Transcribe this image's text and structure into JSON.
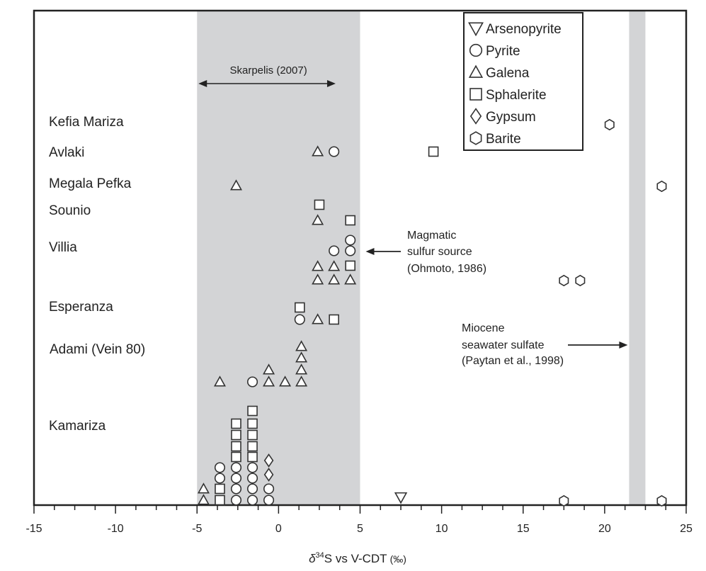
{
  "chart_data": {
    "type": "scatter",
    "xlabel": "δ34S vs V-CDT (‰)",
    "xlabel_parts": {
      "delta": "δ",
      "sup": "34",
      "rest": "S vs V-CDT",
      "unit": "(‰)"
    },
    "xlim": [
      -15,
      25
    ],
    "xticks": [
      -15,
      -10,
      -5,
      0,
      5,
      10,
      15,
      20,
      25
    ],
    "grid": false,
    "legend_position": "top-right",
    "colors": {
      "axis": "#222222",
      "band": "#d3d4d6",
      "marker": "#333333"
    },
    "shaded_bands": [
      {
        "name": "skarpelis-range",
        "x": [
          -5,
          5
        ]
      },
      {
        "name": "seawater-sulfate",
        "x": [
          21.5,
          22.5
        ]
      }
    ],
    "localities": [
      "Kefia Mariza",
      "Avlaki",
      "Megala Pefka",
      "Sounio",
      "Villia",
      "Esperanza",
      "Adami (Vein 80)",
      "Kamariza"
    ],
    "legend": [
      {
        "mineral": "arsenopyrite",
        "label": "Arsenopyrite",
        "icon": "triangle-down-icon"
      },
      {
        "mineral": "pyrite",
        "label": "Pyrite",
        "icon": "circle-icon"
      },
      {
        "mineral": "galena",
        "label": "Galena",
        "icon": "triangle-up-icon"
      },
      {
        "mineral": "sphalerite",
        "label": "Sphalerite",
        "icon": "square-icon"
      },
      {
        "mineral": "gypsum",
        "label": "Gypsum",
        "icon": "diamond-icon"
      },
      {
        "mineral": "barite",
        "label": "Barite",
        "icon": "hexagon-icon"
      }
    ],
    "annotations": {
      "skarpelis": "Skarpelis (2007)",
      "magmatic": [
        "Magmatic",
        "sulfur source",
        "(Ohmoto, 1986)"
      ],
      "miocene": [
        "Miocene",
        "seawater sulfate",
        "(Paytan et al., 1998)"
      ]
    },
    "series": [
      {
        "locality": "Kefia Mariza",
        "mineral": "barite",
        "x": [
          20.3
        ]
      },
      {
        "locality": "Avlaki",
        "mineral": "galena",
        "x": [
          2.4
        ]
      },
      {
        "locality": "Avlaki",
        "mineral": "pyrite",
        "x": [
          3.4
        ]
      },
      {
        "locality": "Avlaki",
        "mineral": "sphalerite",
        "x": [
          9.5
        ]
      },
      {
        "locality": "Megala Pefka",
        "mineral": "galena",
        "x": [
          -2.6
        ]
      },
      {
        "locality": "Megala Pefka",
        "mineral": "barite",
        "x": [
          23.5
        ]
      },
      {
        "locality": "Sounio",
        "mineral": "sphalerite",
        "x": [
          2.5,
          4.4
        ]
      },
      {
        "locality": "Sounio",
        "mineral": "galena",
        "x": [
          2.4
        ]
      },
      {
        "locality": "Villia",
        "mineral": "pyrite",
        "x": [
          4.4,
          3.4,
          4.4
        ]
      },
      {
        "locality": "Villia",
        "mineral": "sphalerite",
        "x": [
          4.4
        ]
      },
      {
        "locality": "Villia",
        "mineral": "galena",
        "x": [
          2.4,
          3.4,
          2.4,
          3.4,
          4.4
        ]
      },
      {
        "locality": "Villia",
        "mineral": "barite",
        "x": [
          17.5,
          18.5
        ]
      },
      {
        "locality": "Esperanza",
        "mineral": "sphalerite",
        "x": [
          1.3,
          3.4
        ]
      },
      {
        "locality": "Esperanza",
        "mineral": "pyrite",
        "x": [
          1.3
        ]
      },
      {
        "locality": "Esperanza",
        "mineral": "galena",
        "x": [
          2.4
        ]
      },
      {
        "locality": "Adami (Vein 80)",
        "mineral": "galena",
        "x": [
          1.4,
          1.4,
          -0.6,
          1.4,
          -3.6,
          -0.6,
          0.4,
          1.4
        ]
      },
      {
        "locality": "Adami (Vein 80)",
        "mineral": "pyrite",
        "x": [
          -1.6
        ]
      },
      {
        "locality": "Kamariza",
        "mineral": "sphalerite",
        "x": [
          -1.6,
          -2.6,
          -1.6,
          -2.6,
          -1.6,
          -2.6,
          -1.6,
          -2.6,
          -1.6,
          -3.6,
          -3.6
        ]
      },
      {
        "locality": "Kamariza",
        "mineral": "gypsum",
        "x": [
          -0.6,
          -0.6
        ]
      },
      {
        "locality": "Kamariza",
        "mineral": "pyrite",
        "x": [
          -3.6,
          -2.6,
          -1.6,
          -3.6,
          -2.6,
          -1.6,
          -2.6,
          -1.6,
          -0.6,
          -2.6,
          -1.6,
          -0.6
        ]
      },
      {
        "locality": "Kamariza",
        "mineral": "galena",
        "x": [
          -4.6,
          -4.6
        ]
      },
      {
        "locality": "Kamariza",
        "mineral": "arsenopyrite",
        "x": [
          7.5
        ]
      },
      {
        "locality": "Kamariza",
        "mineral": "barite",
        "x": [
          17.5,
          23.5
        ]
      }
    ]
  }
}
